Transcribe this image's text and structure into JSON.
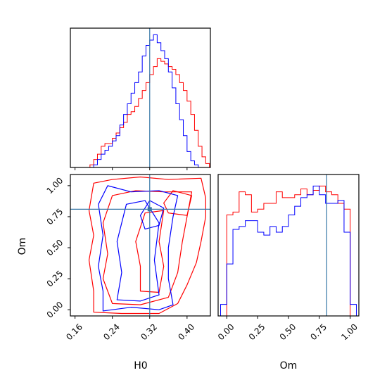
{
  "chart_data": {
    "type": "corner",
    "parameters": [
      "H0",
      "Om"
    ],
    "truth": {
      "H0": 0.32,
      "Om": 0.81
    },
    "colors": {
      "red": "#ff0000",
      "blue": "#0000ff",
      "truth": "#3777a7"
    },
    "grid": false,
    "panels": {
      "hist_H0": {
        "xlim": [
          0.15,
          0.45
        ],
        "bin_edges": [
          0.16,
          0.168,
          0.176,
          0.184,
          0.192,
          0.2,
          0.208,
          0.216,
          0.224,
          0.232,
          0.24,
          0.248,
          0.256,
          0.264,
          0.272,
          0.28,
          0.288,
          0.296,
          0.304,
          0.312,
          0.32,
          0.328,
          0.336,
          0.344,
          0.352,
          0.36,
          0.368,
          0.376,
          0.384,
          0.392,
          0.4,
          0.408,
          0.416,
          0.424,
          0.432,
          0.44,
          0.448
        ],
        "series": [
          {
            "color": "red",
            "values": [
              0,
              0,
              0,
              0,
              2,
              6,
              10,
              16,
              18,
              18,
              22,
              26,
              30,
              34,
              40,
              42,
              46,
              52,
              58,
              64,
              70,
              76,
              82,
              80,
              78,
              76,
              74,
              70,
              64,
              58,
              50,
              40,
              28,
              16,
              8,
              3
            ]
          },
          {
            "color": "blue",
            "values": [
              0,
              0,
              0,
              0,
              0,
              2,
              6,
              10,
              13,
              16,
              20,
              24,
              32,
              40,
              48,
              56,
              64,
              72,
              84,
              92,
              96,
              100,
              94,
              88,
              82,
              72,
              60,
              48,
              36,
              24,
              12,
              5,
              2,
              0,
              0,
              0
            ]
          }
        ],
        "ymax": 105
      },
      "hist_Om": {
        "xlim": [
          -0.07,
          1.07
        ],
        "bin_edges": [
          -0.05,
          0.0,
          0.05,
          0.1,
          0.15,
          0.2,
          0.25,
          0.3,
          0.35,
          0.4,
          0.45,
          0.5,
          0.55,
          0.6,
          0.65,
          0.7,
          0.75,
          0.8,
          0.85,
          0.9,
          0.95,
          1.0,
          1.05
        ],
        "series": [
          {
            "color": "red",
            "values": [
              0,
              70,
              72,
              86,
              84,
              72,
              74,
              78,
              78,
              86,
              82,
              82,
              84,
              88,
              84,
              87,
              90,
              86,
              84,
              78,
              74,
              0
            ]
          },
          {
            "color": "blue",
            "values": [
              8,
              36,
              60,
              62,
              66,
              66,
              58,
              56,
              62,
              58,
              62,
              70,
              76,
              82,
              84,
              90,
              84,
              78,
              78,
              80,
              58,
              8
            ]
          }
        ],
        "ymax": 98
      },
      "joint": {
        "xlim": [
          0.15,
          0.45
        ],
        "ylim": [
          -0.05,
          1.09
        ],
        "contours": [
          {
            "color": "red",
            "points": [
              [
                0.2,
                -0.02
              ],
              [
                0.26,
                -0.03
              ],
              [
                0.34,
                -0.03
              ],
              [
                0.38,
                0.05
              ],
              [
                0.4,
                0.2
              ],
              [
                0.42,
                0.38
              ],
              [
                0.43,
                0.55
              ],
              [
                0.44,
                0.75
              ],
              [
                0.44,
                0.9
              ],
              [
                0.43,
                1.06
              ],
              [
                0.36,
                1.05
              ],
              [
                0.3,
                1.07
              ],
              [
                0.24,
                1.05
              ],
              [
                0.2,
                1.02
              ],
              [
                0.19,
                0.8
              ],
              [
                0.2,
                0.6
              ],
              [
                0.19,
                0.4
              ],
              [
                0.2,
                0.15
              ]
            ]
          },
          {
            "color": "red",
            "points": [
              [
                0.24,
                0.05
              ],
              [
                0.3,
                0.04
              ],
              [
                0.36,
                0.1
              ],
              [
                0.38,
                0.3
              ],
              [
                0.39,
                0.55
              ],
              [
                0.4,
                0.75
              ],
              [
                0.41,
                0.95
              ],
              [
                0.35,
                0.95
              ],
              [
                0.29,
                0.96
              ],
              [
                0.24,
                0.92
              ],
              [
                0.22,
                0.7
              ],
              [
                0.23,
                0.45
              ],
              [
                0.22,
                0.25
              ]
            ]
          },
          {
            "color": "red",
            "points": [
              [
                0.3,
                0.15
              ],
              [
                0.34,
                0.14
              ],
              [
                0.35,
                0.35
              ],
              [
                0.34,
                0.55
              ],
              [
                0.35,
                0.8
              ],
              [
                0.31,
                0.78
              ],
              [
                0.29,
                0.55
              ],
              [
                0.3,
                0.35
              ]
            ]
          },
          {
            "color": "red",
            "points": [
              [
                0.36,
                0.78
              ],
              [
                0.4,
                0.76
              ],
              [
                0.41,
                0.92
              ],
              [
                0.37,
                0.96
              ],
              [
                0.35,
                0.86
              ]
            ]
          },
          {
            "color": "blue",
            "points": [
              [
                0.22,
                -0.01
              ],
              [
                0.28,
                0.02
              ],
              [
                0.34,
                0.0
              ],
              [
                0.37,
                0.04
              ],
              [
                0.36,
                0.25
              ],
              [
                0.36,
                0.5
              ],
              [
                0.37,
                0.75
              ],
              [
                0.38,
                0.92
              ],
              [
                0.34,
                0.96
              ],
              [
                0.28,
                0.95
              ],
              [
                0.23,
                1.0
              ],
              [
                0.21,
                0.85
              ],
              [
                0.22,
                0.6
              ],
              [
                0.21,
                0.35
              ],
              [
                0.22,
                0.15
              ]
            ]
          },
          {
            "color": "blue",
            "points": [
              [
                0.25,
                0.08
              ],
              [
                0.3,
                0.07
              ],
              [
                0.34,
                0.12
              ],
              [
                0.33,
                0.4
              ],
              [
                0.34,
                0.7
              ],
              [
                0.31,
                0.88
              ],
              [
                0.27,
                0.85
              ],
              [
                0.25,
                0.55
              ],
              [
                0.26,
                0.3
              ]
            ]
          },
          {
            "color": "blue",
            "points": [
              [
                0.31,
                0.65
              ],
              [
                0.34,
                0.68
              ],
              [
                0.35,
                0.82
              ],
              [
                0.32,
                0.88
              ],
              [
                0.3,
                0.76
              ]
            ]
          }
        ]
      }
    },
    "ticks": {
      "H0": {
        "values": [
          0.16,
          0.24,
          0.32,
          0.4
        ],
        "labels": [
          "0.16",
          "0.24",
          "0.32",
          "0.40"
        ]
      },
      "Om": {
        "values": [
          0.0,
          0.25,
          0.5,
          0.75,
          1.0
        ],
        "labels": [
          "0.00",
          "0.25",
          "0.50",
          "0.75",
          "1.00"
        ]
      }
    },
    "xlabel_joint": "H0",
    "ylabel_joint": "Om",
    "xlabel_hist_Om": "Om"
  }
}
